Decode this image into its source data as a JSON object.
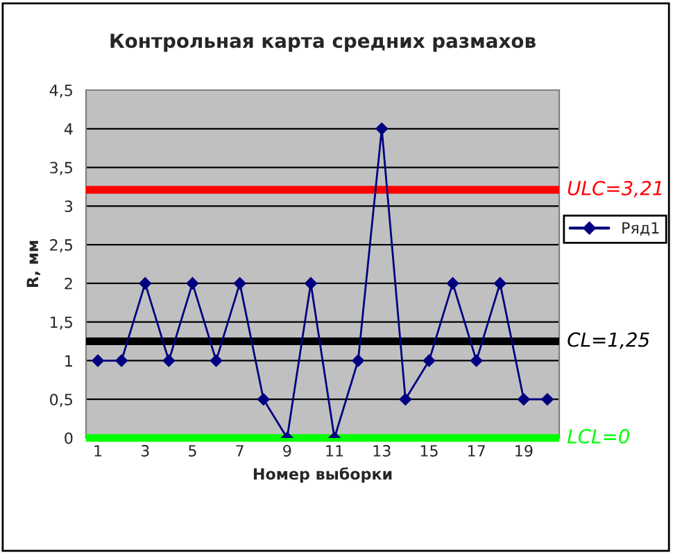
{
  "chart_data": {
    "type": "line",
    "title": "Контрольная карта средних размахов",
    "xlabel": "Номер выборки",
    "ylabel": "R, мм",
    "categories": [
      "1",
      null,
      "3",
      null,
      "5",
      null,
      "7",
      null,
      "9",
      null,
      "11",
      null,
      "13",
      null,
      "15",
      null,
      "17",
      null,
      "19",
      null
    ],
    "series": [
      {
        "name": "Ряд1",
        "color": "#000080",
        "values": [
          1,
          1,
          2,
          1,
          2,
          1,
          2,
          0.5,
          0,
          2,
          0,
          1,
          4,
          0.5,
          1,
          2,
          1,
          2,
          0.5,
          0.5
        ]
      }
    ],
    "ylim": [
      0,
      4.5
    ],
    "yticks": [
      0,
      {
        "value": 0.5,
        "label": "0,5"
      },
      1,
      {
        "value": 1.5,
        "label": "1,5"
      },
      2,
      {
        "value": 2.5,
        "label": "2,5"
      },
      3,
      {
        "value": 3.5,
        "label": "3,5"
      },
      4,
      {
        "value": 4.5,
        "label": "4,5"
      }
    ],
    "ref_lines": [
      {
        "axis": "y",
        "value": 3.21,
        "label": "ULC=3,21",
        "color": "#ff0000"
      },
      {
        "axis": "y",
        "value": 1.25,
        "label": "CL=1,25",
        "color": "#000000"
      },
      {
        "axis": "y",
        "value": 0,
        "label": "LCL=0",
        "color": "#00ff00"
      }
    ],
    "grid": "y",
    "legend": "right",
    "marker": "diamond",
    "line_style": "solid"
  }
}
